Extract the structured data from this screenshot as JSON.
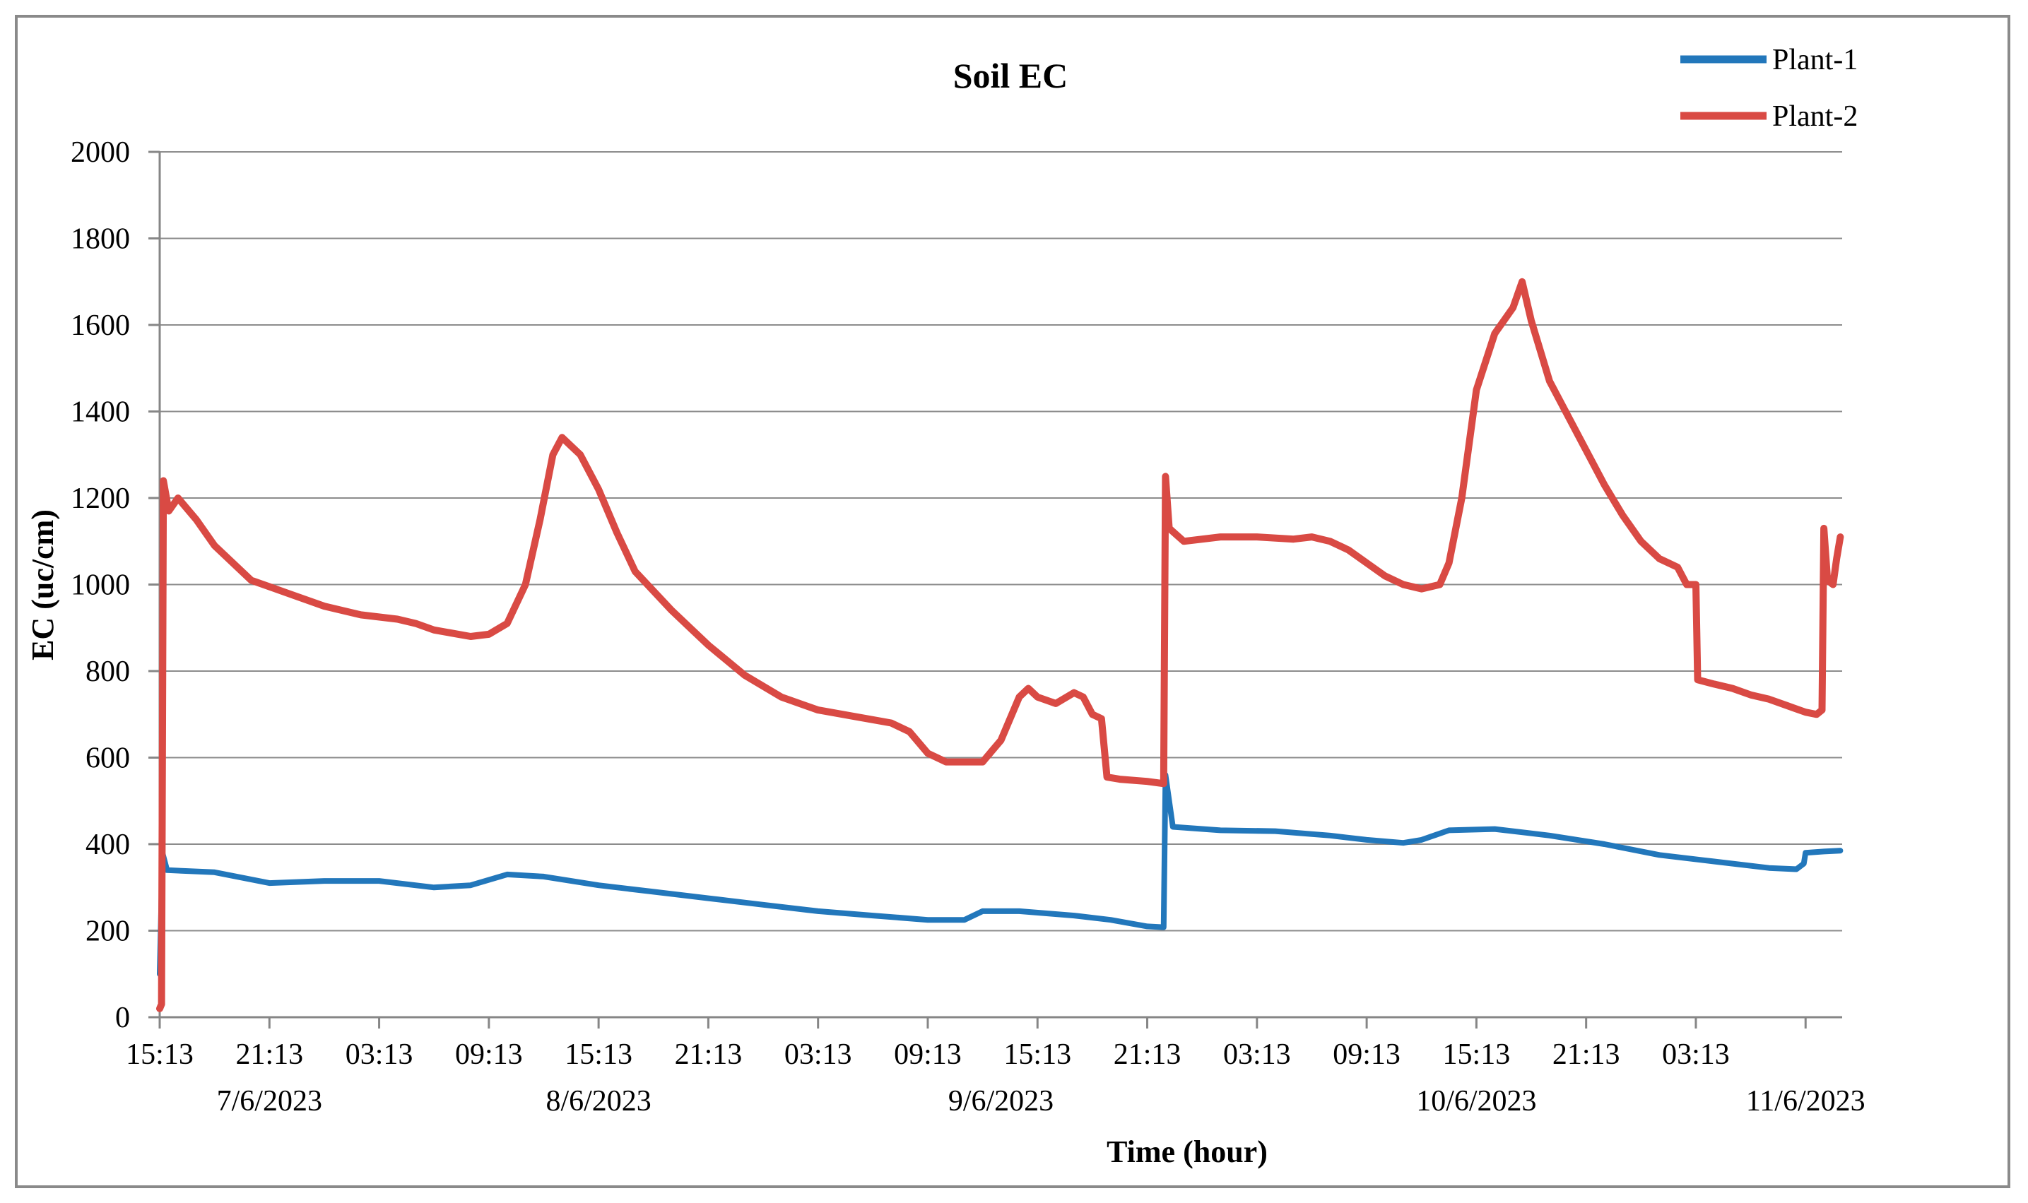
{
  "chart_data": {
    "type": "line",
    "title": "Soil EC",
    "xlabel": "Time (hour)",
    "ylabel": "EC (uc/cm)",
    "ylim": [
      0,
      2000
    ],
    "yticks": [
      0,
      200,
      400,
      600,
      800,
      1000,
      1200,
      1400,
      1600,
      1800,
      2000
    ],
    "grid": true,
    "legend_position": "top-right",
    "x_unit": "hours since 15:13 on 7/6/2023",
    "xlim": [
      0,
      92
    ],
    "xtick_hours": [
      0,
      6,
      12,
      18,
      24,
      30,
      36,
      42,
      48,
      54,
      60,
      66,
      72,
      78,
      84,
      90
    ],
    "xtick_labels": [
      "15:13",
      "21:13",
      "03:13",
      "09:13",
      "15:13",
      "21:13",
      "03:13",
      "09:13",
      "15:13",
      "21:13",
      "03:13",
      "09:13",
      "15:13",
      "21:13",
      "03:13",
      ""
    ],
    "date_labels": [
      {
        "hour": 6,
        "label": "7/6/2023"
      },
      {
        "hour": 24,
        "label": "8/6/2023"
      },
      {
        "hour": 46,
        "label": "9/6/2023"
      },
      {
        "hour": 72,
        "label": "10/6/2023"
      },
      {
        "hour": 90,
        "label": "11/6/2023"
      }
    ],
    "series": [
      {
        "name": "Plant-1",
        "color": "#2277bb",
        "points": [
          [
            0.0,
            100
          ],
          [
            0.15,
            380
          ],
          [
            0.4,
            340
          ],
          [
            3,
            335
          ],
          [
            6,
            310
          ],
          [
            9,
            315
          ],
          [
            12,
            315
          ],
          [
            15,
            300
          ],
          [
            17,
            305
          ],
          [
            19,
            330
          ],
          [
            21,
            325
          ],
          [
            24,
            305
          ],
          [
            27,
            290
          ],
          [
            30,
            275
          ],
          [
            33,
            260
          ],
          [
            36,
            245
          ],
          [
            39,
            235
          ],
          [
            42,
            225
          ],
          [
            44,
            225
          ],
          [
            45,
            245
          ],
          [
            47,
            245
          ],
          [
            50,
            235
          ],
          [
            52,
            225
          ],
          [
            54,
            210
          ],
          [
            54.9,
            208
          ],
          [
            55.0,
            560
          ],
          [
            55.4,
            440
          ],
          [
            58,
            432
          ],
          [
            61,
            430
          ],
          [
            64,
            420
          ],
          [
            66,
            410
          ],
          [
            68,
            403
          ],
          [
            69,
            410
          ],
          [
            70.5,
            432
          ],
          [
            73,
            435
          ],
          [
            76,
            420
          ],
          [
            79,
            400
          ],
          [
            82,
            375
          ],
          [
            85,
            360
          ],
          [
            88,
            345
          ],
          [
            89.5,
            342
          ],
          [
            89.9,
            355
          ],
          [
            90.0,
            380
          ],
          [
            91,
            383
          ],
          [
            91.9,
            385
          ]
        ]
      },
      {
        "name": "Plant-2",
        "color": "#d94a44",
        "points": [
          [
            0.0,
            20
          ],
          [
            0.1,
            30
          ],
          [
            0.2,
            1240
          ],
          [
            0.5,
            1170
          ],
          [
            1,
            1200
          ],
          [
            2,
            1150
          ],
          [
            3,
            1090
          ],
          [
            4,
            1050
          ],
          [
            5,
            1010
          ],
          [
            7,
            980
          ],
          [
            9,
            950
          ],
          [
            11,
            930
          ],
          [
            13,
            920
          ],
          [
            14,
            910
          ],
          [
            15,
            895
          ],
          [
            17,
            880
          ],
          [
            18,
            885
          ],
          [
            19,
            910
          ],
          [
            20,
            1000
          ],
          [
            20.8,
            1150
          ],
          [
            21.5,
            1300
          ],
          [
            22,
            1340
          ],
          [
            23,
            1300
          ],
          [
            24,
            1220
          ],
          [
            25,
            1120
          ],
          [
            26,
            1030
          ],
          [
            28,
            940
          ],
          [
            30,
            860
          ],
          [
            32,
            790
          ],
          [
            34,
            740
          ],
          [
            36,
            710
          ],
          [
            38,
            695
          ],
          [
            40,
            680
          ],
          [
            41,
            660
          ],
          [
            42,
            610
          ],
          [
            43,
            590
          ],
          [
            45,
            590
          ],
          [
            46,
            640
          ],
          [
            47,
            740
          ],
          [
            47.5,
            760
          ],
          [
            48,
            740
          ],
          [
            49,
            725
          ],
          [
            50,
            750
          ],
          [
            50.5,
            740
          ],
          [
            51,
            700
          ],
          [
            51.5,
            690
          ],
          [
            51.8,
            555
          ],
          [
            52.5,
            550
          ],
          [
            54,
            545
          ],
          [
            54.9,
            540
          ],
          [
            55.0,
            1250
          ],
          [
            55.2,
            1130
          ],
          [
            56,
            1100
          ],
          [
            58,
            1110
          ],
          [
            60,
            1110
          ],
          [
            62,
            1105
          ],
          [
            63,
            1110
          ],
          [
            64,
            1100
          ],
          [
            65,
            1080
          ],
          [
            66,
            1050
          ],
          [
            67,
            1020
          ],
          [
            68,
            1000
          ],
          [
            69,
            990
          ],
          [
            70,
            1000
          ],
          [
            70.5,
            1050
          ],
          [
            71.2,
            1200
          ],
          [
            72,
            1450
          ],
          [
            73,
            1580
          ],
          [
            74,
            1640
          ],
          [
            74.5,
            1700
          ],
          [
            75,
            1610
          ],
          [
            76,
            1470
          ],
          [
            77,
            1390
          ],
          [
            78,
            1310
          ],
          [
            79,
            1230
          ],
          [
            80,
            1160
          ],
          [
            81,
            1100
          ],
          [
            82,
            1060
          ],
          [
            83,
            1040
          ],
          [
            83.5,
            1000
          ],
          [
            84,
            1000
          ],
          [
            84.1,
            780
          ],
          [
            85,
            770
          ],
          [
            86,
            760
          ],
          [
            87,
            745
          ],
          [
            88,
            735
          ],
          [
            89,
            720
          ],
          [
            90,
            705
          ],
          [
            90.6,
            700
          ],
          [
            90.9,
            710
          ],
          [
            91.0,
            1130
          ],
          [
            91.2,
            1010
          ],
          [
            91.5,
            1000
          ],
          [
            91.7,
            1060
          ],
          [
            91.9,
            1110
          ]
        ]
      }
    ]
  }
}
